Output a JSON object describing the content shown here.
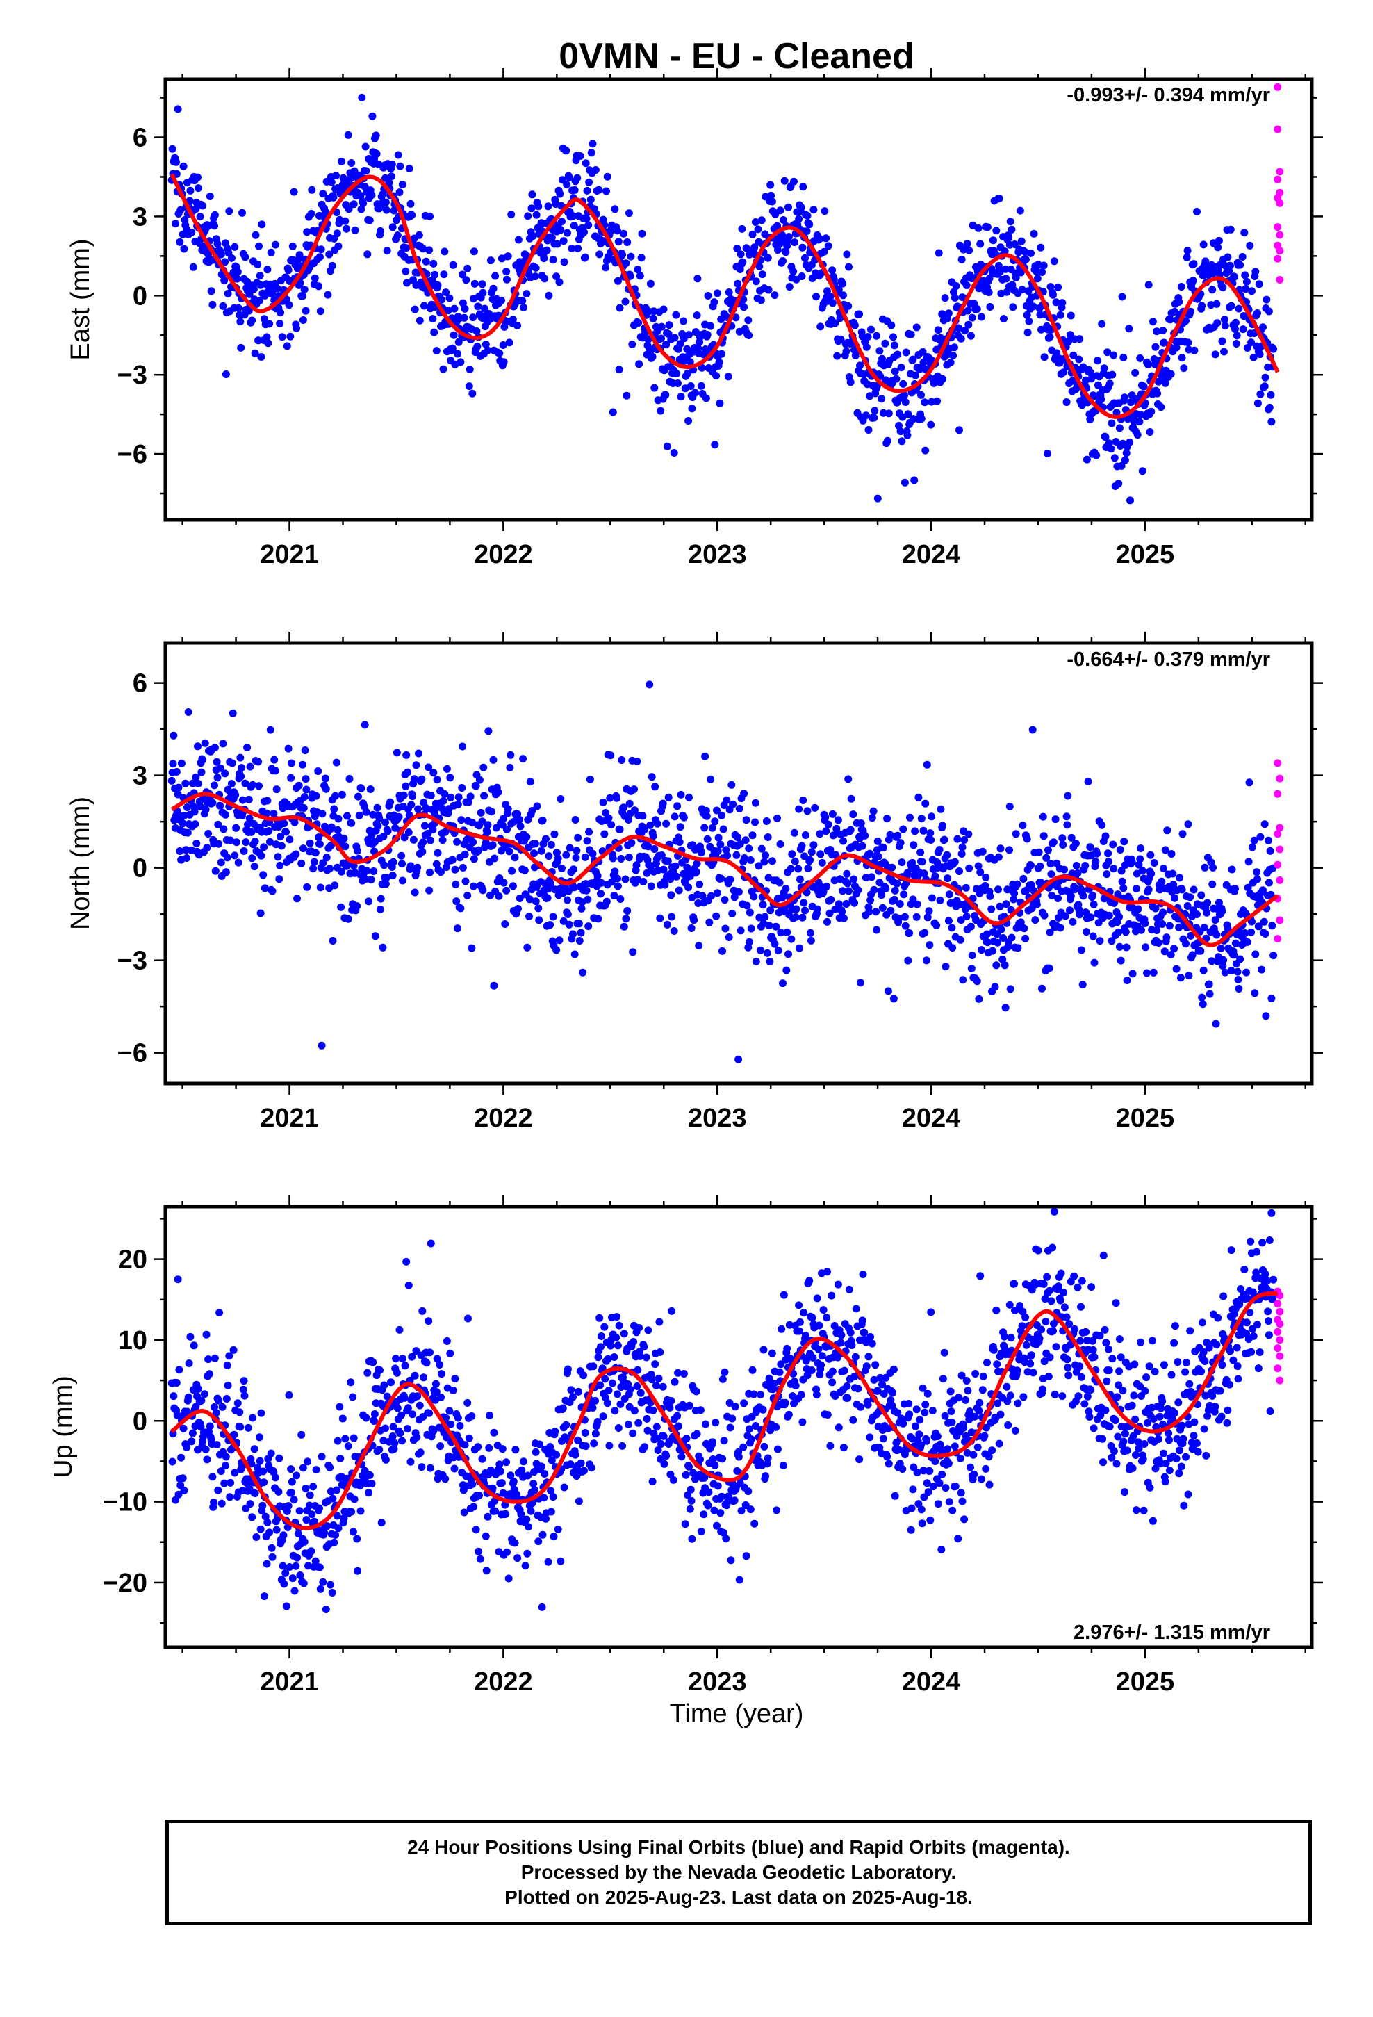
{
  "title": "0VMN  - EU - Cleaned",
  "xlabel": "Time (year)",
  "footer": {
    "line1": "24 Hour Positions Using Final Orbits (blue) and Rapid Orbits (magenta).",
    "line2": "Processed by the Nevada Geodetic Laboratory.",
    "line3": "Plotted on 2025-Aug-23. Last data on 2025-Aug-18."
  },
  "colors": {
    "final_orbits": "#0000ff",
    "rapid_orbits": "#ff00ff",
    "model": "#ff0000"
  },
  "chart_data": [
    {
      "type": "scatter",
      "ylabel": "East (mm)",
      "rate_text": "-0.993+/- 0.394 mm/yr",
      "xlim": [
        2020.42,
        2025.78
      ],
      "ylim": [
        -8.5,
        8.2
      ],
      "xticks": [
        2021,
        2022,
        2023,
        2024,
        2025
      ],
      "yticks": [
        -6,
        -3,
        0,
        3,
        6
      ],
      "model_fit": {
        "x": [
          2020.45,
          2020.6,
          2020.8,
          2020.9,
          2021.05,
          2021.2,
          2021.37,
          2021.5,
          2021.6,
          2021.75,
          2021.88,
          2022.0,
          2022.15,
          2022.3,
          2022.37,
          2022.5,
          2022.65,
          2022.75,
          2022.87,
          2023.0,
          2023.15,
          2023.25,
          2023.37,
          2023.5,
          2023.65,
          2023.75,
          2023.87,
          2024.0,
          2024.15,
          2024.25,
          2024.37,
          2024.5,
          2024.65,
          2024.75,
          2024.87,
          2025.0,
          2025.15,
          2025.25,
          2025.37,
          2025.5,
          2025.62
        ],
        "y": [
          4.6,
          2.2,
          -0.2,
          -0.5,
          0.8,
          3.2,
          4.5,
          3.5,
          1.2,
          -1.0,
          -1.6,
          -0.8,
          1.8,
          3.4,
          3.5,
          2.0,
          -0.8,
          -2.2,
          -2.7,
          -1.9,
          0.8,
          2.2,
          2.5,
          1.0,
          -1.8,
          -3.2,
          -3.6,
          -2.8,
          -0.4,
          1.0,
          1.5,
          0.2,
          -2.6,
          -4.0,
          -4.6,
          -3.8,
          -1.2,
          0.2,
          0.6,
          -0.9,
          -2.9
        ]
      },
      "series": [
        {
          "name": "Final Orbits (blue)",
          "x_start": 2020.45,
          "x_end": 2025.6,
          "noise": 1.05,
          "outlier_step": 11
        },
        {
          "name": "Rapid Orbits (magenta)",
          "x": [
            2025.62,
            2025.62,
            2025.63,
            2025.62,
            2025.63,
            2025.62,
            2025.63,
            2025.62,
            2025.63,
            2025.62,
            2025.63,
            2025.62,
            2025.63
          ],
          "y": [
            7.9,
            6.3,
            4.7,
            4.4,
            3.9,
            3.7,
            3.5,
            2.6,
            2.3,
            1.9,
            1.7,
            1.4,
            0.6
          ]
        }
      ]
    },
    {
      "type": "scatter",
      "ylabel": "North (mm)",
      "rate_text": "-0.664+/- 0.379 mm/yr",
      "xlim": [
        2020.42,
        2025.78
      ],
      "ylim": [
        -7.0,
        7.3
      ],
      "xticks": [
        2021,
        2022,
        2023,
        2024,
        2025
      ],
      "yticks": [
        -6,
        -3,
        0,
        3,
        6
      ],
      "model_fit": {
        "x": [
          2020.45,
          2020.6,
          2020.75,
          2020.9,
          2021.05,
          2021.2,
          2021.3,
          2021.45,
          2021.6,
          2021.75,
          2021.9,
          2022.05,
          2022.15,
          2022.3,
          2022.45,
          2022.6,
          2022.75,
          2022.9,
          2023.05,
          2023.2,
          2023.3,
          2023.45,
          2023.6,
          2023.75,
          2023.9,
          2024.05,
          2024.15,
          2024.3,
          2024.45,
          2024.6,
          2024.75,
          2024.9,
          2025.05,
          2025.15,
          2025.3,
          2025.45,
          2025.62
        ],
        "y": [
          1.9,
          2.4,
          2.0,
          1.6,
          1.6,
          0.9,
          0.2,
          0.6,
          1.7,
          1.3,
          1.0,
          0.8,
          0.2,
          -0.5,
          0.3,
          1.0,
          0.7,
          0.3,
          0.2,
          -0.7,
          -1.2,
          -0.4,
          0.4,
          0.0,
          -0.4,
          -0.5,
          -0.9,
          -1.8,
          -1.1,
          -0.3,
          -0.6,
          -1.1,
          -1.1,
          -1.4,
          -2.5,
          -1.8,
          -0.9
        ]
      },
      "series": [
        {
          "name": "Final Orbits (blue)",
          "x_start": 2020.45,
          "x_end": 2025.6,
          "noise": 1.15,
          "outlier_step": 9
        },
        {
          "name": "Rapid Orbits (magenta)",
          "x": [
            2025.62,
            2025.63,
            2025.62,
            2025.63,
            2025.62,
            2025.63,
            2025.62,
            2025.63,
            2025.62,
            2025.63,
            2025.62
          ],
          "y": [
            3.4,
            2.9,
            2.4,
            1.3,
            1.1,
            0.6,
            0.1,
            -0.4,
            -1.0,
            -1.7,
            -2.3
          ]
        }
      ]
    },
    {
      "type": "scatter",
      "ylabel": "Up (mm)",
      "rate_text": "2.976+/- 1.315 mm/yr",
      "xlim": [
        2020.42,
        2025.78
      ],
      "ylim": [
        -28.0,
        26.5
      ],
      "xticks": [
        2021,
        2022,
        2023,
        2024,
        2025
      ],
      "yticks": [
        -20,
        -10,
        0,
        10,
        20
      ],
      "model_fit": {
        "x": [
          2020.45,
          2020.6,
          2020.75,
          2020.9,
          2021.05,
          2021.2,
          2021.35,
          2021.5,
          2021.6,
          2021.75,
          2021.9,
          2022.05,
          2022.2,
          2022.35,
          2022.45,
          2022.6,
          2022.75,
          2022.9,
          2023.05,
          2023.15,
          2023.3,
          2023.45,
          2023.6,
          2023.75,
          2023.9,
          2024.05,
          2024.2,
          2024.35,
          2024.5,
          2024.6,
          2024.75,
          2024.9,
          2025.05,
          2025.2,
          2025.35,
          2025.5,
          2025.62
        ],
        "y": [
          -1.3,
          1.2,
          -3.2,
          -10.0,
          -13.2,
          -11.5,
          -4.0,
          3.5,
          4.0,
          -1.5,
          -8.0,
          -10.0,
          -8.2,
          -0.5,
          5.5,
          6.0,
          0.8,
          -5.3,
          -7.3,
          -5.3,
          4.2,
          10.0,
          8.0,
          2.2,
          -3.2,
          -4.3,
          -2.2,
          6.3,
          13.0,
          12.4,
          6.3,
          0.5,
          -1.3,
          1.2,
          8.0,
          14.8,
          15.8
        ]
      },
      "series": [
        {
          "name": "Final Orbits (blue)",
          "x_start": 2020.45,
          "x_end": 2025.6,
          "noise": 4.3,
          "outlier_step": 10
        },
        {
          "name": "Rapid Orbits (magenta)",
          "x": [
            2025.62,
            2025.63,
            2025.62,
            2025.63,
            2025.62,
            2025.63,
            2025.62,
            2025.63,
            2025.62,
            2025.63,
            2025.62,
            2025.63
          ],
          "y": [
            16.0,
            15.5,
            14.5,
            13.5,
            12.5,
            12.0,
            11.0,
            10.0,
            9.0,
            8.0,
            6.5,
            5.0
          ]
        }
      ]
    }
  ]
}
